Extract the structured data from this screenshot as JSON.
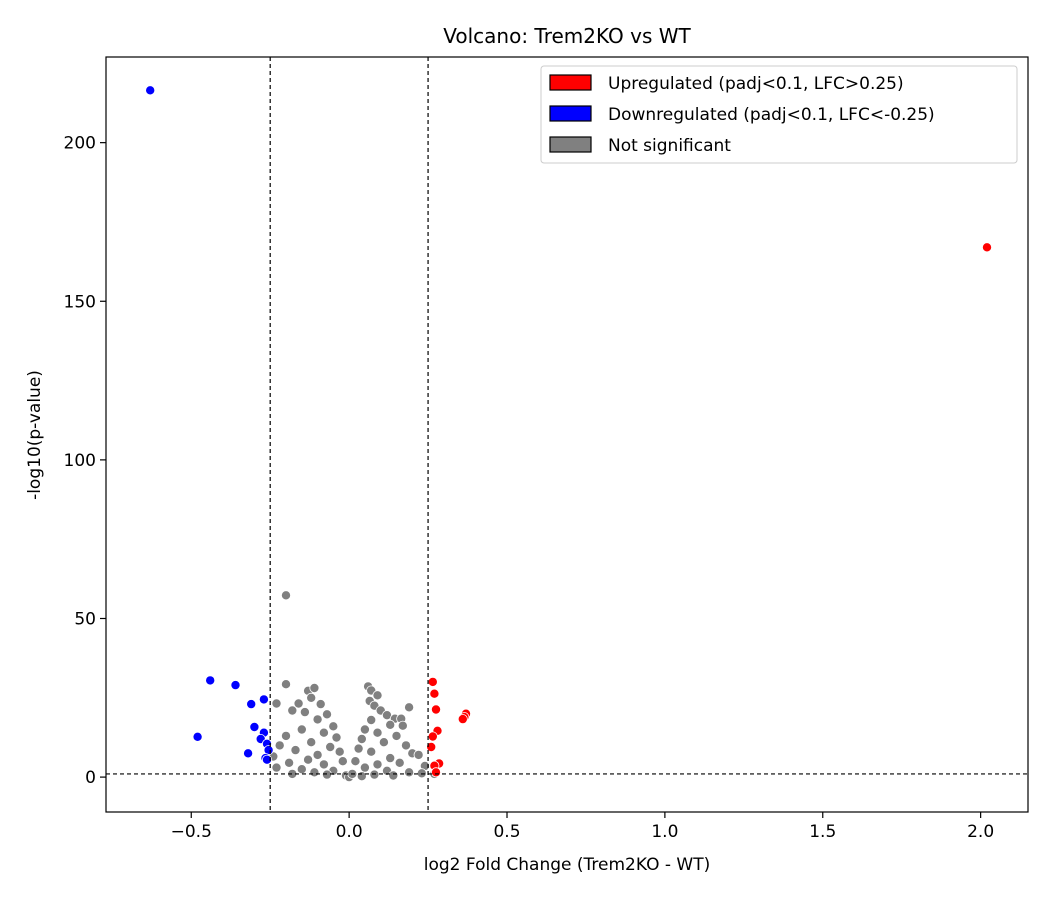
{
  "chart_data": {
    "type": "scatter",
    "title": "Volcano: Trem2KO vs WT",
    "xlabel": "log2 Fold Change (Trem2KO - WT)",
    "ylabel": "-log10(p-value)",
    "xlim": [
      -0.77,
      2.15
    ],
    "ylim": [
      -11,
      227
    ],
    "xticks": [
      -0.5,
      0.0,
      0.5,
      1.0,
      1.5,
      2.0
    ],
    "xtick_labels": [
      "−0.5",
      "0.0",
      "0.5",
      "1.0",
      "1.5",
      "2.0"
    ],
    "yticks": [
      0,
      50,
      100,
      150,
      200
    ],
    "ytick_labels": [
      "0",
      "50",
      "100",
      "150",
      "200"
    ],
    "thresholds": {
      "lfc": [
        -0.25,
        0.25
      ],
      "pval_line": 1.0
    },
    "grid": false,
    "legend_position": "top-right",
    "colors": {
      "up": "#ff0000",
      "down": "#0000ff",
      "ns": "#808080"
    },
    "series": [
      {
        "name": "Upregulated (padj<0.1, LFC>0.25)",
        "key": "up",
        "points": [
          [
            2.02,
            167
          ],
          [
            0.265,
            30
          ],
          [
            0.27,
            26.3
          ],
          [
            0.275,
            21.3
          ],
          [
            0.37,
            20.0
          ],
          [
            0.365,
            18.9
          ],
          [
            0.36,
            18.3
          ],
          [
            0.28,
            14.6
          ],
          [
            0.265,
            12.8
          ],
          [
            0.26,
            9.5
          ],
          [
            0.285,
            4.3
          ],
          [
            0.27,
            3.6
          ],
          [
            0.275,
            1.5
          ]
        ]
      },
      {
        "name": "Downregulated (padj<0.1, LFC<-0.25)",
        "key": "down",
        "points": [
          [
            -0.63,
            216.5
          ],
          [
            -0.44,
            30.5
          ],
          [
            -0.36,
            29.0
          ],
          [
            -0.27,
            24.5
          ],
          [
            -0.31,
            23.0
          ],
          [
            -0.48,
            12.7
          ],
          [
            -0.3,
            15.8
          ],
          [
            -0.27,
            14.0
          ],
          [
            -0.28,
            12.0
          ],
          [
            -0.26,
            10.5
          ],
          [
            -0.255,
            8.5
          ],
          [
            -0.32,
            7.5
          ],
          [
            -0.265,
            6.0
          ],
          [
            -0.26,
            5.5
          ]
        ]
      },
      {
        "name": "Not significant",
        "key": "ns",
        "points": [
          [
            -0.2,
            57.3
          ],
          [
            -0.2,
            29.3
          ],
          [
            -0.13,
            27.2
          ],
          [
            -0.11,
            28.1
          ],
          [
            -0.12,
            25.0
          ],
          [
            -0.16,
            23.2
          ],
          [
            -0.23,
            23.2
          ],
          [
            -0.09,
            23.0
          ],
          [
            -0.18,
            21.0
          ],
          [
            -0.14,
            20.5
          ],
          [
            -0.07,
            19.8
          ],
          [
            -0.1,
            18.2
          ],
          [
            -0.05,
            16.0
          ],
          [
            -0.15,
            15.0
          ],
          [
            -0.08,
            14.0
          ],
          [
            -0.2,
            13.0
          ],
          [
            -0.04,
            12.5
          ],
          [
            -0.12,
            11.0
          ],
          [
            -0.22,
            10.0
          ],
          [
            -0.06,
            9.5
          ],
          [
            -0.17,
            8.5
          ],
          [
            -0.03,
            8.0
          ],
          [
            -0.1,
            7.0
          ],
          [
            -0.24,
            6.5
          ],
          [
            -0.13,
            5.5
          ],
          [
            -0.02,
            5.0
          ],
          [
            -0.19,
            4.5
          ],
          [
            -0.08,
            4.0
          ],
          [
            -0.23,
            3.0
          ],
          [
            -0.15,
            2.5
          ],
          [
            -0.05,
            2.0
          ],
          [
            -0.11,
            1.5
          ],
          [
            -0.18,
            1.0
          ],
          [
            -0.07,
            0.8
          ],
          [
            -0.01,
            0.5
          ],
          [
            0.0,
            0.0
          ],
          [
            0.06,
            28.6
          ],
          [
            0.07,
            27.3
          ],
          [
            0.09,
            25.8
          ],
          [
            0.065,
            24.0
          ],
          [
            0.08,
            22.5
          ],
          [
            0.19,
            22.0
          ],
          [
            0.1,
            21.0
          ],
          [
            0.12,
            19.5
          ],
          [
            0.145,
            18.4
          ],
          [
            0.165,
            18.4
          ],
          [
            0.07,
            18.0
          ],
          [
            0.13,
            16.5
          ],
          [
            0.17,
            16.2
          ],
          [
            0.05,
            15.0
          ],
          [
            0.09,
            14.0
          ],
          [
            0.15,
            13.0
          ],
          [
            0.04,
            12.0
          ],
          [
            0.11,
            11.0
          ],
          [
            0.18,
            10.0
          ],
          [
            0.03,
            9.0
          ],
          [
            0.07,
            8.0
          ],
          [
            0.2,
            7.5
          ],
          [
            0.22,
            7.0
          ],
          [
            0.13,
            6.0
          ],
          [
            0.02,
            5.0
          ],
          [
            0.16,
            4.5
          ],
          [
            0.09,
            4.0
          ],
          [
            0.24,
            3.5
          ],
          [
            0.05,
            3.0
          ],
          [
            0.12,
            2.0
          ],
          [
            0.19,
            1.5
          ],
          [
            0.01,
            1.0
          ],
          [
            0.08,
            0.8
          ],
          [
            0.14,
            0.5
          ],
          [
            0.23,
            1.2
          ],
          [
            0.04,
            0.3
          ],
          [
            0.27,
            1.0
          ]
        ]
      }
    ]
  }
}
